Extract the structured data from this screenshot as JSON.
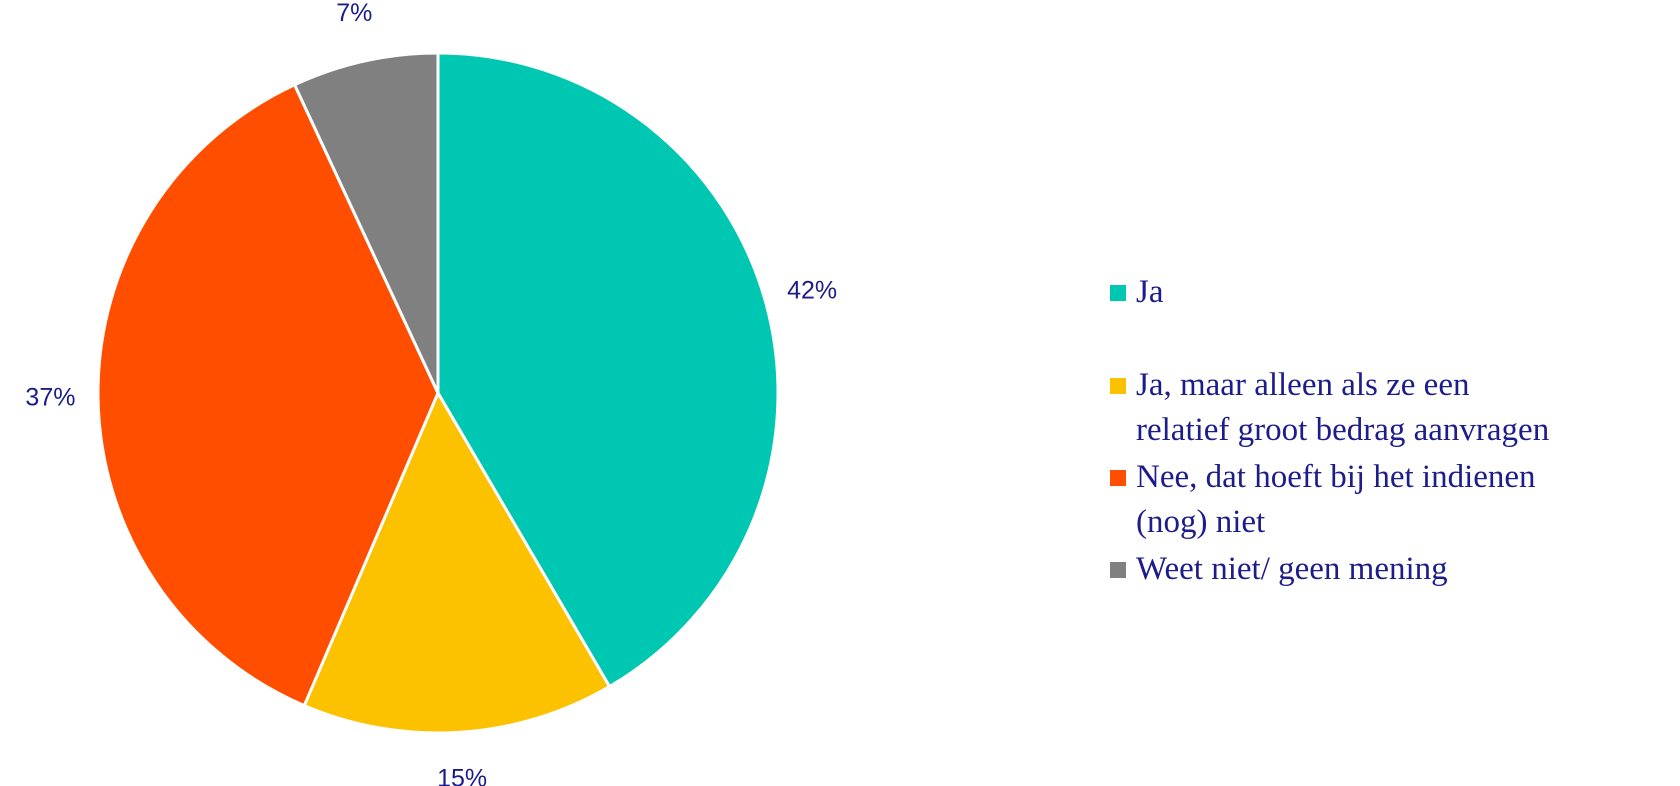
{
  "chart_data": {
    "type": "pie",
    "categories": [
      "Ja",
      "Ja, maar alleen als ze een relatief groot bedrag aanvragen",
      "Nee, dat hoeft bij het indienen (nog) niet",
      "Weet niet/ geen mening"
    ],
    "values": [
      42,
      15,
      37,
      7
    ],
    "value_labels": [
      "42%",
      "15%",
      "37%",
      "7%"
    ],
    "colors": [
      "#00c7b1",
      "#fcc200",
      "#ff4e00",
      "#808080"
    ],
    "legend": "right"
  }
}
